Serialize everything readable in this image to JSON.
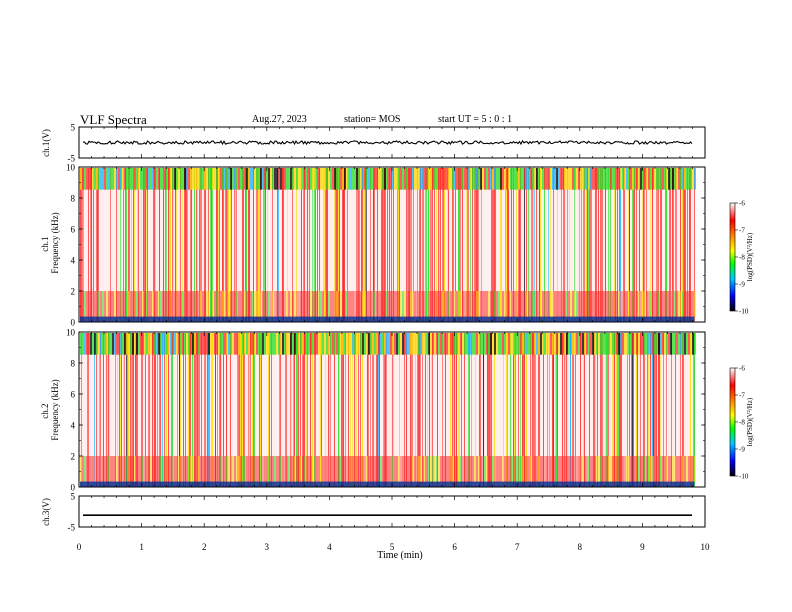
{
  "header": {
    "title": "VLF Spectra",
    "date": "Aug.27, 2023",
    "station": "station= MOS",
    "start": "start UT =  5 : 0 : 1"
  },
  "chart_data": [
    {
      "type": "line",
      "name": "ch1-waveform-panel",
      "ylabel": "ch.1(V)",
      "ylim": [
        -5,
        5
      ],
      "yticks": [
        "5",
        "-5"
      ],
      "xlim": [
        0,
        10
      ],
      "series_level": 0
    },
    {
      "type": "heatmap",
      "name": "ch1-spectrogram",
      "ylabel": "ch.1\nFrequency (kHz)",
      "ylabel_line1": "ch.1",
      "ylabel_line2": "Frequency (kHz)",
      "yticks": [
        "0",
        "2",
        "4",
        "6",
        "8",
        "10"
      ],
      "ylim": [
        0,
        10
      ],
      "xlim": [
        0,
        10
      ],
      "data_xmax": 9.83
    },
    {
      "type": "heatmap",
      "name": "ch2-spectrogram",
      "ylabel": "ch.2\nFrequency (kHz)",
      "ylabel_line1": "ch.2",
      "ylabel_line2": "Frequency (kHz)",
      "yticks": [
        "0",
        "2",
        "4",
        "6",
        "8",
        "10"
      ],
      "ylim": [
        0,
        10
      ],
      "xlim": [
        0,
        10
      ],
      "data_xmax": 9.83
    },
    {
      "type": "line",
      "name": "ch3-waveform-panel",
      "ylabel": "ch.3(V)",
      "ylim": [
        -5,
        5
      ],
      "yticks": [
        "5",
        "-5"
      ],
      "xlim": [
        0,
        10
      ],
      "series_level": -1.2,
      "xlabel": "Time (min)",
      "xticks": [
        "0",
        "1",
        "2",
        "3",
        "4",
        "5",
        "6",
        "7",
        "8",
        "9",
        "10"
      ]
    }
  ],
  "colorbar": {
    "label": "log(PSD)(V²/Hz)",
    "ticks": [
      "-6",
      "-7",
      "-8",
      "-9",
      "-10"
    ],
    "range": [
      -10,
      -6
    ],
    "colors": [
      "#000000",
      "#0000ff",
      "#00c8ff",
      "#00ff00",
      "#ffff00",
      "#ff8000",
      "#ff0000",
      "#ffffff"
    ]
  }
}
